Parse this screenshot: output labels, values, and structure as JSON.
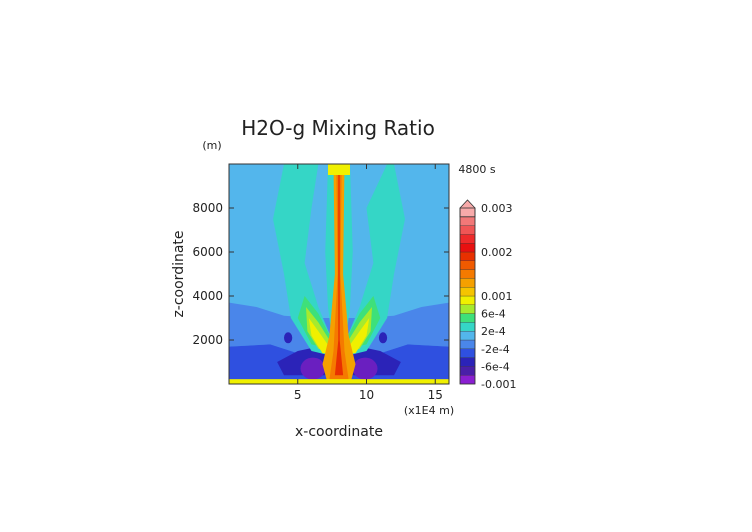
{
  "chart_data": {
    "type": "heatmap",
    "title": "H2O-g Mixing Ratio",
    "time_label": "4800 s",
    "xlabel": "x-coordinate",
    "ylabel": "z-coordinate",
    "x_unit_label": "(x1E4 m)",
    "y_unit_label": "(m)",
    "xlim": [
      0,
      16
    ],
    "ylim": [
      0,
      10000
    ],
    "x_ticks": [
      {
        "value": 5,
        "label": "5"
      },
      {
        "value": 10,
        "label": "10"
      },
      {
        "value": 15,
        "label": "15"
      }
    ],
    "y_ticks": [
      {
        "value": 2000,
        "label": "2000"
      },
      {
        "value": 4000,
        "label": "4000"
      },
      {
        "value": 6000,
        "label": "6000"
      },
      {
        "value": 8000,
        "label": "8000"
      }
    ],
    "colorbar_labels": [
      {
        "level": 0,
        "label": "-0.001"
      },
      {
        "level": 2,
        "label": "-6e-4"
      },
      {
        "level": 4,
        "label": "-2e-4"
      },
      {
        "level": 6,
        "label": "2e-4"
      },
      {
        "level": 8,
        "label": "6e-4"
      },
      {
        "level": 10,
        "label": "0.001"
      },
      {
        "level": 15,
        "label": "0.002"
      },
      {
        "level": 20,
        "label": "0.003"
      }
    ],
    "colorbar_levels": [
      "#8a1fd1",
      "#4a1fa8",
      "#2b23b8",
      "#2f50e0",
      "#4a86ea",
      "#53b6ec",
      "#35d6c6",
      "#3ee07a",
      "#a6ea2e",
      "#f0f000",
      "#f5c400",
      "#f5a000",
      "#f57a00",
      "#f05a00",
      "#e83000",
      "#e81010",
      "#ee2a2a",
      "#f05555",
      "#f27878",
      "#f8aaaa"
    ],
    "fields": {
      "background": "#53b6ec",
      "mid_layer": "#4a86ea",
      "deep_low": "#2f50e0",
      "lowest": "#2b23b8",
      "min_core": "#6a1fc0",
      "plume_1": "#35d6c6",
      "plume_2": "#3ee07a",
      "plume_3": "#a6ea2e",
      "plume_4": "#f0f000",
      "core_1": "#f5a000",
      "core_2": "#f57a00",
      "core_3": "#e83000",
      "surface": "#f0f000"
    }
  }
}
